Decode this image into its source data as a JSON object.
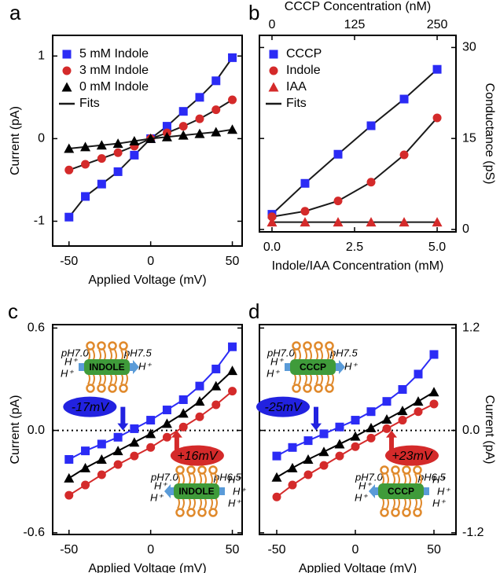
{
  "chart_data": [
    {
      "type": "line",
      "panel": "a",
      "xlabel": "Applied Voltage (mV)",
      "ylabel": "Current (pA)",
      "yaxis_side": "left",
      "xlim": [
        -60,
        56
      ],
      "xticks": [
        -50,
        0,
        50
      ],
      "ylim": [
        -1.3,
        1.25
      ],
      "yticks": [
        -1,
        0,
        1
      ],
      "legend": "upper left",
      "fit_label": "Fits",
      "fit_color": "#1a1a1a",
      "series": [
        {
          "name": "5 mM Indole",
          "color": "#2b2bf5",
          "marker": "square",
          "x": [
            -50,
            -40,
            -30,
            -20,
            -10,
            0,
            10,
            20,
            30,
            40,
            50
          ],
          "values": [
            -0.95,
            -0.7,
            -0.55,
            -0.4,
            -0.2,
            0,
            0.15,
            0.33,
            0.5,
            0.7,
            0.98
          ]
        },
        {
          "name": "3 mM Indole",
          "color": "#d42a2a",
          "marker": "circle",
          "x": [
            -50,
            -40,
            -30,
            -20,
            -10,
            0,
            10,
            20,
            30,
            40,
            50
          ],
          "values": [
            -0.38,
            -0.31,
            -0.24,
            -0.17,
            -0.09,
            0,
            0.07,
            0.15,
            0.24,
            0.35,
            0.47
          ]
        },
        {
          "name": "0 mM Indole",
          "color": "#000000",
          "marker": "triangle",
          "x": [
            -50,
            -40,
            -30,
            -20,
            -10,
            0,
            10,
            20,
            30,
            40,
            50
          ],
          "values": [
            -0.12,
            -0.1,
            -0.08,
            -0.06,
            -0.03,
            0,
            0.02,
            0.04,
            0.06,
            0.08,
            0.11
          ]
        }
      ]
    },
    {
      "type": "line",
      "panel": "b",
      "xlabel": "Indole/IAA Concentration (mM)",
      "xlabel_color": "#c0282c",
      "x2label": "CCCP Concentration (nM)",
      "x2label_color": "#2b2bd0",
      "ylabel": "Conductance (pS)",
      "yaxis_side": "right",
      "xlim": [
        -0.38,
        5.57
      ],
      "xticks": [
        {
          "value": 0,
          "label": "0.0"
        },
        2.5,
        {
          "value": 5,
          "label": "5.0"
        }
      ],
      "x2lim": [
        -19,
        278.5
      ],
      "x2ticks": [
        0,
        125,
        250
      ],
      "ylim": [
        -0.4,
        32
      ],
      "yticks": [
        0,
        15,
        30
      ],
      "legend": "upper left",
      "fit_label": "Fits",
      "fit_color": "#1a1a1a",
      "series": [
        {
          "name": "CCCP",
          "color": "#2b2bf5",
          "marker": "square",
          "axis": "x2",
          "x": [
            0,
            50,
            100,
            150,
            200,
            250
          ],
          "values": [
            2.5,
            7.6,
            12.4,
            17.1,
            21.5,
            26.4
          ]
        },
        {
          "name": "Indole",
          "color": "#d42a2a",
          "marker": "circle",
          "x": [
            0,
            1,
            2,
            3,
            4,
            5
          ],
          "values": [
            2.1,
            3.0,
            4.7,
            7.8,
            12.3,
            18.4
          ]
        },
        {
          "name": "IAA",
          "color": "#d42a2a",
          "marker": "triangle",
          "x": [
            0,
            1,
            2,
            3,
            4,
            5
          ],
          "values": [
            1.2,
            1.2,
            1.2,
            1.2,
            1.2,
            1.2
          ]
        }
      ]
    },
    {
      "type": "line",
      "panel": "c",
      "xlabel": "Applied Voltage (mV)",
      "ylabel": "Current (pA)",
      "yaxis_side": "left",
      "xlim": [
        -60,
        56
      ],
      "xticks": [
        -50,
        0,
        50
      ],
      "ylim": [
        -0.61,
        0.62
      ],
      "yticks": [
        -0.6,
        {
          "value": 0,
          "label": "0.0"
        },
        0.6
      ],
      "zero_line": true,
      "series": [
        {
          "color": "#2b2bf5",
          "marker": "square",
          "x": [
            -50,
            -40,
            -30,
            -20,
            -10,
            0,
            10,
            20,
            30,
            40,
            50
          ],
          "values": [
            -0.17,
            -0.12,
            -0.08,
            -0.04,
            0.01,
            0.06,
            0.12,
            0.18,
            0.26,
            0.36,
            0.49
          ]
        },
        {
          "color": "#000000",
          "marker": "triangle",
          "x": [
            -50,
            -40,
            -30,
            -20,
            -10,
            0,
            10,
            20,
            30,
            40,
            50
          ],
          "values": [
            -0.28,
            -0.22,
            -0.17,
            -0.12,
            -0.07,
            -0.02,
            0.04,
            0.1,
            0.17,
            0.26,
            0.35
          ]
        },
        {
          "color": "#d42a2a",
          "marker": "circle",
          "x": [
            -50,
            -40,
            -30,
            -20,
            -10,
            0,
            10,
            20,
            30,
            40,
            50
          ],
          "values": [
            -0.38,
            -0.32,
            -0.26,
            -0.2,
            -0.15,
            -0.1,
            -0.04,
            0.02,
            0.08,
            0.15,
            0.23
          ]
        }
      ],
      "annotations": [
        {
          "text": "-17mV",
          "x": -17,
          "color": "#2222e0",
          "side": "above"
        },
        {
          "text": "+16mV",
          "x": 16,
          "color": "#d42a2a",
          "side": "below"
        }
      ],
      "insets": [
        {
          "left_ph": "pH7.0",
          "right_ph": "pH7.5",
          "ph_color": "#2222d0",
          "molecule": "INDOLE",
          "direction": "right",
          "left_ions": [
            "H⁺",
            "H⁺"
          ],
          "right_ions": [
            "H⁺"
          ]
        },
        {
          "left_ph": "pH7.0",
          "right_ph": "pH6.5",
          "ph_color": "#c0282c",
          "molecule": "INDOLE",
          "direction": "left",
          "left_ions": [
            "H⁺",
            "H⁺"
          ],
          "right_ions": [
            "H⁺",
            "H⁺",
            "H⁺"
          ]
        }
      ]
    },
    {
      "type": "line",
      "panel": "d",
      "xlabel": "Applied Voltage (mV)",
      "ylabel": "Current (pA)",
      "yaxis_side": "right",
      "xlim": [
        -61,
        64
      ],
      "xticks": [
        -50,
        0,
        50
      ],
      "ylim": [
        -1.22,
        1.24
      ],
      "yticks": [
        -1.2,
        {
          "value": 0,
          "label": "0.0"
        },
        1.2
      ],
      "zero_line": true,
      "series": [
        {
          "color": "#2b2bf5",
          "marker": "square",
          "x": [
            -50,
            -40,
            -30,
            -20,
            -10,
            0,
            10,
            20,
            30,
            40,
            50
          ],
          "values": [
            -0.3,
            -0.2,
            -0.12,
            -0.04,
            0.04,
            0.12,
            0.22,
            0.34,
            0.48,
            0.66,
            0.89
          ]
        },
        {
          "color": "#000000",
          "marker": "triangle",
          "x": [
            -50,
            -40,
            -30,
            -20,
            -10,
            0,
            10,
            20,
            30,
            40,
            50
          ],
          "values": [
            -0.55,
            -0.44,
            -0.34,
            -0.25,
            -0.16,
            -0.07,
            0.03,
            0.13,
            0.23,
            0.34,
            0.45
          ]
        },
        {
          "color": "#d42a2a",
          "marker": "circle",
          "x": [
            -50,
            -40,
            -30,
            -20,
            -10,
            0,
            10,
            20,
            30,
            40,
            50
          ],
          "values": [
            -0.78,
            -0.64,
            -0.52,
            -0.41,
            -0.3,
            -0.19,
            -0.09,
            0.02,
            0.12,
            0.22,
            0.31
          ]
        }
      ],
      "annotations": [
        {
          "text": "-25mV",
          "x": -25,
          "color": "#2222e0",
          "side": "above"
        },
        {
          "text": "+23mV",
          "x": 23,
          "color": "#d42a2a",
          "side": "below"
        }
      ],
      "insets": [
        {
          "left_ph": "pH7.0",
          "right_ph": "pH7.5",
          "ph_color": "#2222d0",
          "molecule": "CCCP",
          "direction": "right",
          "left_ions": [
            "H⁺",
            "H⁺"
          ],
          "right_ions": [
            "H⁺"
          ]
        },
        {
          "left_ph": "pH7.0",
          "right_ph": "pH6.5",
          "ph_color": "#c0282c",
          "molecule": "CCCP",
          "direction": "left",
          "left_ions": [
            "H⁺",
            "H⁺"
          ],
          "right_ions": [
            "H⁺",
            "H⁺",
            "H⁺"
          ]
        }
      ]
    }
  ]
}
